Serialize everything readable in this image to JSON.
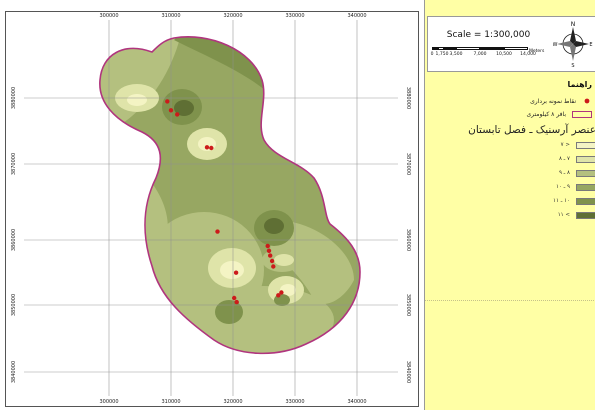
{
  "map": {
    "x_ticks": [
      "300000",
      "310000",
      "320000",
      "330000",
      "340000"
    ],
    "y_ticks": [
      "3880000",
      "3870000",
      "3860000",
      "3850000",
      "3840000"
    ],
    "sample_points_utm": [
      [
        309400,
        3879500
      ],
      [
        310000,
        3878200
      ],
      [
        311000,
        3877600
      ],
      [
        315800,
        3872800
      ],
      [
        316500,
        3872700
      ],
      [
        317500,
        3860500
      ],
      [
        320500,
        3854500
      ],
      [
        320200,
        3850800
      ],
      [
        320600,
        3850200
      ],
      [
        325600,
        3858400
      ],
      [
        325800,
        3857700
      ],
      [
        326000,
        3857000
      ],
      [
        326300,
        3856200
      ],
      [
        326500,
        3855400
      ],
      [
        327800,
        3851600
      ],
      [
        327300,
        3851200
      ]
    ],
    "colors": {
      "class_1": "#f4f4c4",
      "class_2": "#dfe4a9",
      "class_3": "#b4c07f",
      "class_4": "#97a762",
      "class_5": "#7f924c",
      "class_6": "#5f6f34",
      "boundary": "#b0357e",
      "points": "#cc1b1b"
    }
  },
  "scale": {
    "text": "Scale = 1:300,000",
    "bar_labels": [
      "0",
      "1,750",
      "3,500",
      "7,000",
      "10,500",
      "14,000"
    ],
    "unit": "Meters"
  },
  "north_arrow": {
    "n": "N",
    "s": "S",
    "e": "E",
    "w": "W"
  },
  "legend": {
    "title": "راهنما",
    "points_label": "نقاط نمونه برداری",
    "buffer_label": "بافر ۸ کیلومتری",
    "class_title": "عنصر آرسنیک ـ فصل تابستان",
    "classes": [
      {
        "label": "< ۷",
        "color": "#f4f4c4"
      },
      {
        "label": "۷ ـ ۸",
        "color": "#dfe4a9"
      },
      {
        "label": "۸ ـ ۹",
        "color": "#b4c07f"
      },
      {
        "label": "۹ ـ ۱۰",
        "color": "#97a762"
      },
      {
        "label": "۱۰ ـ ۱۱",
        "color": "#7f924c"
      },
      {
        "label": "> ۱۱",
        "color": "#5f6f34"
      }
    ]
  }
}
